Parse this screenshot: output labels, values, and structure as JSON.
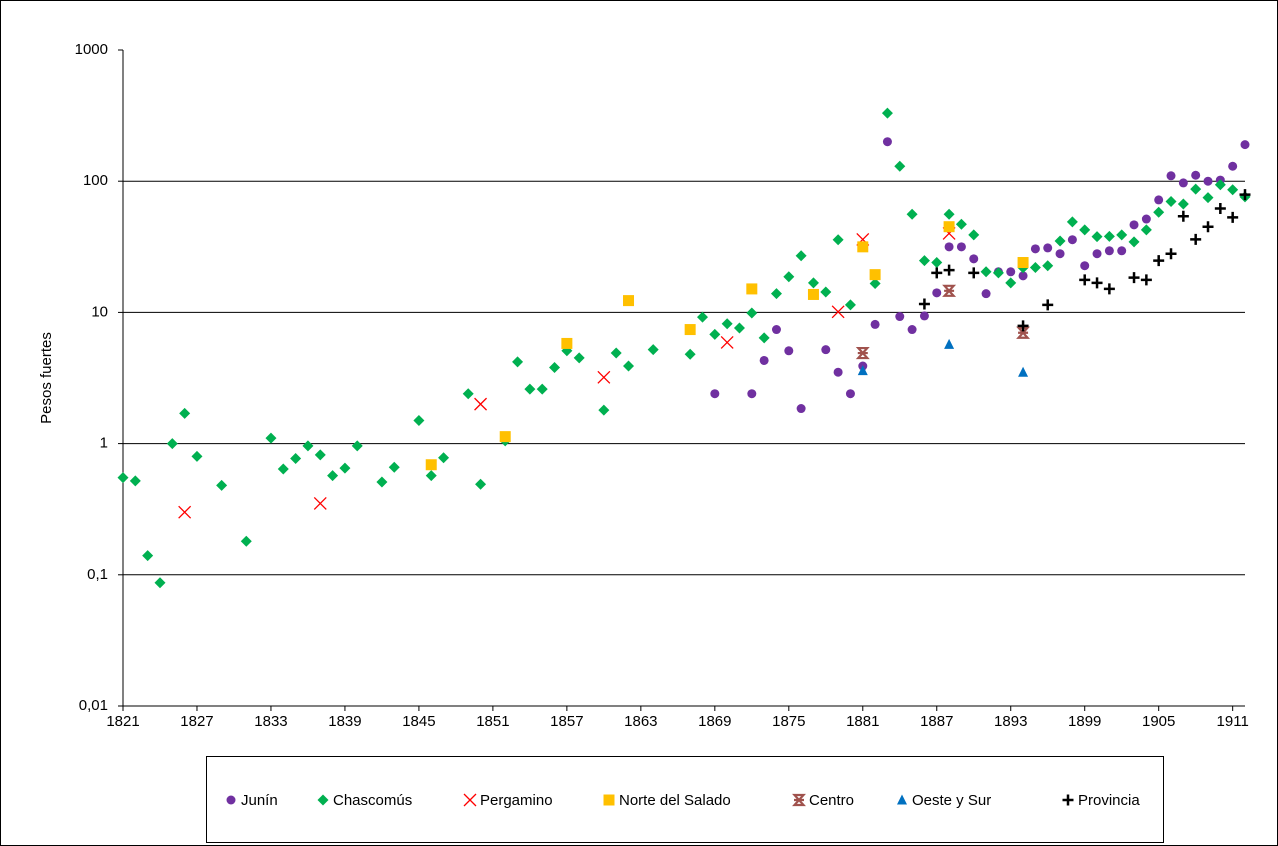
{
  "chart_data": {
    "type": "scatter",
    "ylabel": "Pesos fuertes",
    "ylog": true,
    "grid": true,
    "xlim": [
      1821,
      1912
    ],
    "xticks": [
      1821,
      1827,
      1833,
      1839,
      1845,
      1851,
      1857,
      1863,
      1869,
      1875,
      1881,
      1887,
      1893,
      1899,
      1905,
      1911
    ],
    "ylim": [
      0.01,
      1000
    ],
    "yticks": [
      {
        "value": 0.01,
        "label": "0,01"
      },
      {
        "value": 0.1,
        "label": "0,1"
      },
      1,
      10,
      100,
      1000
    ],
    "series": [
      {
        "name": "Junín",
        "color": "#7030a0",
        "marker": "circle",
        "x": [
          1869,
          1872,
          1873,
          1874,
          1875,
          1876,
          1878,
          1879,
          1880,
          1881,
          1882,
          1883,
          1884,
          1885,
          1886,
          1887,
          1888,
          1889,
          1890,
          1891,
          1892,
          1893,
          1894,
          1895,
          1896,
          1897,
          1898,
          1899,
          1900,
          1901,
          1902,
          1903,
          1904,
          1905,
          1906,
          1907,
          1908,
          1909,
          1910,
          1911,
          1912
        ],
        "values": [
          2.4,
          2.4,
          4.3,
          7.4,
          5.1,
          1.85,
          5.2,
          3.5,
          2.4,
          3.9,
          8.1,
          200,
          9.3,
          7.4,
          9.4,
          14.1,
          31.6,
          31.6,
          25.6,
          13.9,
          20.4,
          20.4,
          19,
          30.5,
          31,
          28,
          35.8,
          22.7,
          28,
          29.5,
          29.5,
          46.5,
          51.5,
          72,
          110,
          97,
          111,
          100,
          102,
          130,
          190
        ]
      },
      {
        "name": "Chascomús",
        "color": "#00b050",
        "marker": "diamond",
        "x": [
          1821,
          1822,
          1823,
          1824,
          1825,
          1826,
          1827,
          1829,
          1831,
          1833,
          1834,
          1835,
          1836,
          1837,
          1838,
          1839,
          1840,
          1842,
          1843,
          1845,
          1846,
          1847,
          1849,
          1850,
          1852,
          1853,
          1854,
          1855,
          1856,
          1857,
          1858,
          1860,
          1861,
          1862,
          1864,
          1867,
          1868,
          1869,
          1870,
          1871,
          1872,
          1873,
          1874,
          1875,
          1876,
          1877,
          1878,
          1879,
          1880,
          1882,
          1883,
          1884,
          1885,
          1886,
          1887,
          1888,
          1889,
          1890,
          1891,
          1892,
          1893,
          1894,
          1895,
          1896,
          1897,
          1898,
          1899,
          1900,
          1901,
          1902,
          1903,
          1904,
          1905,
          1906,
          1907,
          1908,
          1909,
          1910,
          1911,
          1912
        ],
        "values": [
          0.55,
          0.52,
          0.14,
          0.087,
          1.0,
          1.7,
          0.8,
          0.48,
          0.18,
          1.1,
          0.64,
          0.77,
          0.96,
          0.82,
          0.57,
          0.65,
          0.96,
          0.51,
          0.66,
          1.5,
          0.57,
          0.78,
          2.4,
          0.49,
          1.05,
          4.2,
          2.6,
          2.6,
          3.8,
          5.1,
          4.5,
          1.8,
          4.9,
          3.9,
          5.2,
          4.8,
          9.2,
          6.8,
          8.2,
          7.6,
          9.9,
          6.4,
          13.9,
          18.7,
          27,
          16.8,
          14.3,
          35.8,
          11.4,
          16.6,
          330,
          130,
          56,
          24.8,
          24,
          56,
          47,
          39,
          20.4,
          20,
          16.8,
          21.9,
          22,
          22.7,
          35,
          49,
          42.6,
          37.8,
          38,
          39,
          34.5,
          42.6,
          58,
          70,
          67,
          87,
          75,
          94,
          86,
          76
        ]
      },
      {
        "name": "Pergamino",
        "color": "#ff0000",
        "marker": "x",
        "x": [
          1826,
          1837,
          1850,
          1860,
          1870,
          1879,
          1881,
          1888
        ],
        "values": [
          0.3,
          0.35,
          2.0,
          3.2,
          5.9,
          10.1,
          36,
          40
        ]
      },
      {
        "name": "Norte del Salado",
        "color": "#ffc000",
        "marker": "square",
        "x": [
          1846,
          1852,
          1857,
          1862,
          1867,
          1872,
          1877,
          1881,
          1882,
          1888,
          1894
        ],
        "values": [
          0.69,
          1.13,
          5.8,
          12.3,
          7.4,
          15.1,
          13.7,
          31.6,
          19.4,
          45,
          24
        ]
      },
      {
        "name": "Centro",
        "color": "#a0524d",
        "marker": "star",
        "x": [
          1881,
          1888,
          1894
        ],
        "values": [
          4.9,
          14.6,
          7.0
        ]
      },
      {
        "name": "Oeste y Sur",
        "color": "#0070c0",
        "marker": "triangle",
        "x": [
          1881,
          1888,
          1894
        ],
        "values": [
          3.6,
          5.7,
          3.5
        ]
      },
      {
        "name": "Provincia",
        "color": "#000000",
        "marker": "plus",
        "x": [
          1886,
          1887,
          1888,
          1890,
          1894,
          1896,
          1899,
          1900,
          1901,
          1903,
          1904,
          1905,
          1906,
          1907,
          1908,
          1909,
          1910,
          1911,
          1912
        ],
        "values": [
          11.6,
          20,
          21,
          20,
          7.9,
          11.4,
          17.7,
          16.8,
          15.1,
          18.4,
          17.7,
          24.8,
          28,
          54,
          36,
          45,
          62,
          53,
          79
        ]
      }
    ]
  }
}
